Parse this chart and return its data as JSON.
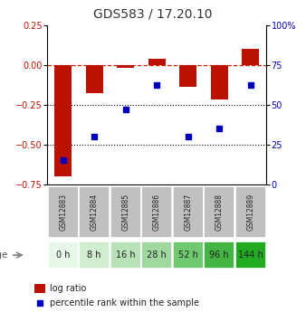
{
  "title": "GDS583 / 17.20.10",
  "samples": [
    "GSM12883",
    "GSM12884",
    "GSM12885",
    "GSM12886",
    "GSM12887",
    "GSM12888",
    "GSM12889"
  ],
  "ages": [
    "0 h",
    "8 h",
    "16 h",
    "28 h",
    "52 h",
    "96 h",
    "144 h"
  ],
  "log_ratio": [
    -0.7,
    -0.18,
    -0.02,
    0.04,
    -0.14,
    -0.22,
    0.1
  ],
  "percentile_rank": [
    15,
    30,
    47,
    62,
    30,
    35,
    62
  ],
  "ylim_left": [
    -0.75,
    0.25
  ],
  "ylim_right": [
    0,
    100
  ],
  "bar_color": "#bb1100",
  "dot_color": "#0000bb",
  "dashed_line_color": "#cc2200",
  "age_colors": [
    "#e8f8e8",
    "#d0edd0",
    "#b8e2b8",
    "#a0d8a0",
    "#70c870",
    "#44b444",
    "#22aa22"
  ],
  "sample_bg_color": "#c0c0c0",
  "dotted_line_color": "#000000",
  "left_ticks": [
    0.25,
    0.0,
    -0.25,
    -0.5,
    -0.75
  ],
  "right_ticks": [
    100,
    75,
    50,
    25,
    0
  ],
  "legend_items": [
    {
      "label": "log ratio",
      "color": "#bb1100"
    },
    {
      "label": "percentile rank within the sample",
      "color": "#0000bb"
    }
  ]
}
